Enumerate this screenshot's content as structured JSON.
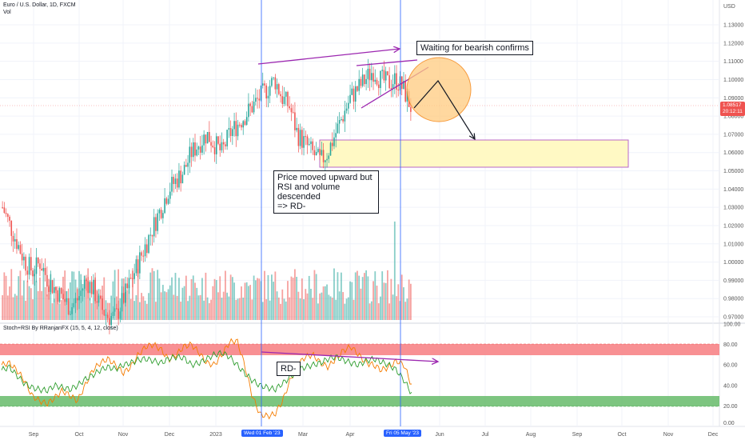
{
  "header": {
    "symbol_line": "Euro / U.S. Dollar, 1D, FXCM",
    "volume_label": "Vol",
    "indicator_label": "Stoch+RSI By RRanjanFX (15, 5, 4, 12, close)"
  },
  "annotations": {
    "top_note": "Waiting for bearish confirms",
    "middle_note_lines": [
      "Price moved upward but",
      "RSI and volume descended",
      "=> RD-"
    ],
    "rd_label": "RD-"
  },
  "price_axis": {
    "unit": "USD",
    "labels": [
      "1.13000",
      "1.12000",
      "1.11000",
      "1.10000",
      "1.09000",
      "1.08000",
      "1.07000",
      "1.06000",
      "1.05000",
      "1.04000",
      "1.03000",
      "1.02000",
      "1.01000",
      "1.00000",
      "0.99000",
      "0.98000",
      "0.97000"
    ],
    "last_price": "1.08517",
    "countdown": "20:12:11"
  },
  "indicator_axis": {
    "labels": [
      "100.00",
      "80.00",
      "60.00",
      "40.00",
      "20.00",
      "0.00"
    ]
  },
  "time_axis": {
    "labels": [
      "Sep",
      "Oct",
      "Nov",
      "Dec",
      "2023",
      "Mar",
      "Apr",
      "Jun",
      "Jul",
      "Aug",
      "Sep",
      "Oct",
      "Nov",
      "Dec"
    ],
    "markers": [
      "Wed 01 Feb '23",
      "Fri 05 May '23"
    ]
  },
  "colors": {
    "up": "#26a69a",
    "down": "#ef5350",
    "marker_line": "#2962ff",
    "trend_purple": "#9c27b0",
    "zone_fill": "#fff9c4",
    "circle_fill": "#ffcc80",
    "rsi_line": "#2e9d2e",
    "stoch_line": "#f57c00",
    "overbought_band": "#f77c80",
    "oversold_band": "#66bb6a"
  },
  "chart_data": [
    {
      "type": "candlestick",
      "title": "Euro / U.S. Dollar, 1D, FXCM",
      "ylim": [
        0.965,
        1.135
      ],
      "x": [
        "Aug 2022",
        "Sep 2022",
        "Oct 2022",
        "Nov 2022",
        "Dec 2022",
        "Jan 2023",
        "Feb 2023",
        "Mar 2023",
        "Apr 2023",
        "May 2023"
      ],
      "close_path": [
        1.03,
        1.02,
        1.01,
        1.0,
        0.995,
        1.0,
        0.99,
        0.985,
        0.98,
        0.975,
        0.98,
        0.99,
        0.985,
        0.975,
        0.97,
        0.97,
        0.98,
        0.99,
        1.0,
        1.01,
        1.02,
        1.03,
        1.04,
        1.045,
        1.05,
        1.06,
        1.065,
        1.07,
        1.065,
        1.06,
        1.07,
        1.075,
        1.08,
        1.085,
        1.09,
        1.095,
        1.1,
        1.09,
        1.085,
        1.07,
        1.065,
        1.06,
        1.055,
        1.06,
        1.07,
        1.08,
        1.09,
        1.095,
        1.1,
        1.105,
        1.1,
        1.098,
        1.1,
        1.095,
        1.085
      ],
      "last_price": 1.08517,
      "target_zone": [
        1.052,
        1.067
      ]
    },
    {
      "type": "line",
      "title": "Stoch+RSI By RRanjanFX (15, 5, 4, 12, close)",
      "ylim": [
        0,
        100
      ],
      "overbought": [
        70,
        80
      ],
      "oversold": [
        20,
        30
      ],
      "rsi": [
        55,
        58,
        50,
        42,
        38,
        36,
        35,
        40,
        38,
        36,
        40,
        46,
        50,
        55,
        58,
        56,
        60,
        62,
        65,
        66,
        64,
        62,
        66,
        68,
        67,
        60,
        62,
        66,
        70,
        72,
        68,
        60,
        52,
        45,
        40,
        38,
        36,
        42,
        48,
        55,
        58,
        60,
        62,
        66,
        68,
        65,
        62,
        60,
        64,
        66,
        63,
        60,
        55,
        45,
        32
      ],
      "stoch": [
        60,
        62,
        55,
        45,
        30,
        25,
        22,
        28,
        35,
        30,
        25,
        40,
        55,
        62,
        66,
        60,
        52,
        58,
        70,
        78,
        80,
        75,
        65,
        70,
        78,
        80,
        72,
        62,
        60,
        70,
        82,
        84,
        60,
        30,
        12,
        10,
        12,
        25,
        45,
        60,
        68,
        70,
        62,
        58,
        66,
        74,
        78,
        70,
        62,
        60,
        55,
        58,
        64,
        60,
        40
      ]
    }
  ]
}
